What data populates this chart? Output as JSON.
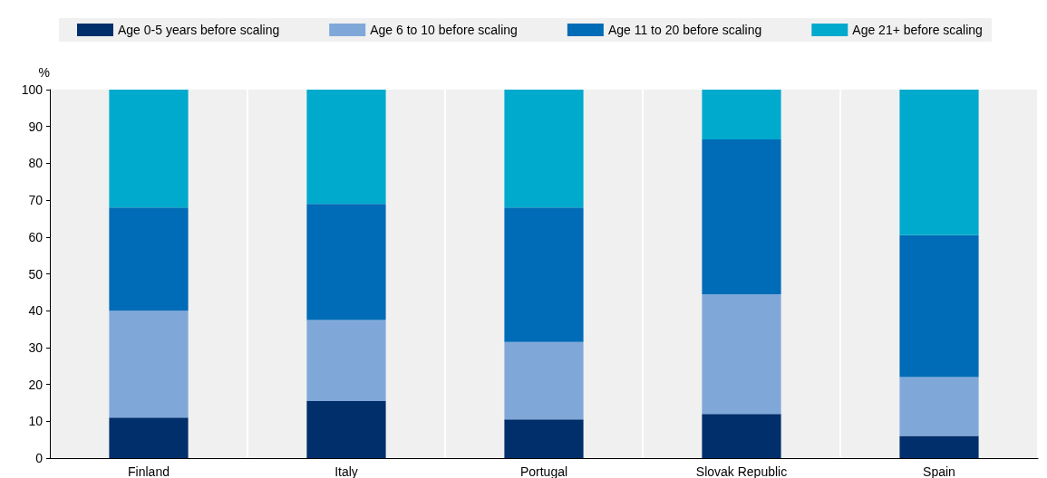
{
  "chart_data": {
    "type": "bar",
    "stacked": true,
    "ylabel": "%",
    "categories": [
      "Finland",
      "Italy",
      "Portugal",
      "Slovak Republic",
      "Spain"
    ],
    "series": [
      {
        "name": "Age 0-5 years before scaling",
        "color": "#002f6c",
        "values": [
          11,
          15.5,
          10.5,
          12,
          6
        ]
      },
      {
        "name": "Age 6 to 10 before scaling",
        "color": "#7fa8d9",
        "values": [
          29,
          22,
          21,
          32.5,
          16
        ]
      },
      {
        "name": "Age 11 to 20 before scaling",
        "color": "#006bb6",
        "values": [
          28,
          31.5,
          36.5,
          42,
          38.5
        ]
      },
      {
        "name": "Age 21+ before scaling",
        "color": "#00aacc",
        "values": [
          32,
          31,
          32,
          13.5,
          39.5
        ]
      }
    ],
    "ylim": [
      0,
      100
    ],
    "yticks": [
      0,
      10,
      20,
      30,
      40,
      50,
      60,
      70,
      80,
      90,
      100
    ],
    "grid": "x",
    "legend": "top"
  }
}
